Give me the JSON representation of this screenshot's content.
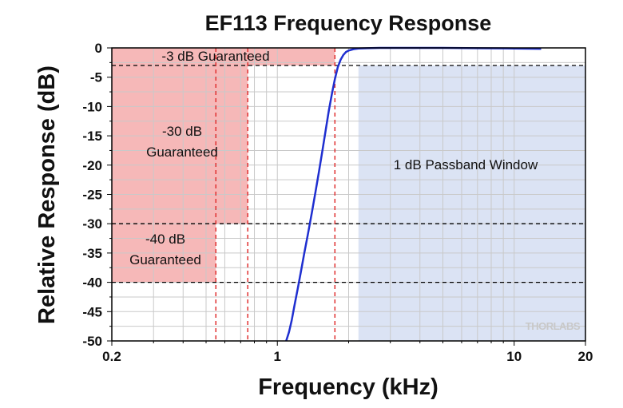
{
  "chart_data": {
    "type": "line",
    "title": "EF113 Frequency Response",
    "xlabel": "Frequency (kHz)",
    "ylabel": "Relative Response (dB)",
    "x_scale": "log",
    "xlim": [
      0.2,
      20
    ],
    "ylim": [
      -50,
      0
    ],
    "x_ticks": [
      0.2,
      1,
      10,
      20
    ],
    "x_tick_labels": [
      "0.2",
      "1",
      "10",
      "20"
    ],
    "y_ticks": [
      0,
      -5,
      -10,
      -15,
      -20,
      -25,
      -30,
      -35,
      -40,
      -45,
      -50
    ],
    "y_tick_labels": [
      "0",
      "-5",
      "-10",
      "-15",
      "-20",
      "-25",
      "-30",
      "-35",
      "-40",
      "-45",
      "-50"
    ],
    "grid": true,
    "series": [
      {
        "color": "#1f2fd0",
        "x": [
          1.09,
          1.12,
          1.15,
          1.18,
          1.22,
          1.26,
          1.3,
          1.35,
          1.4,
          1.45,
          1.5,
          1.55,
          1.6,
          1.65,
          1.7,
          1.75,
          1.8,
          1.85,
          1.9,
          1.95,
          2.0,
          2.1,
          2.2,
          2.4,
          2.7,
          3.0,
          4.0,
          5.0,
          7.0,
          10.0,
          13.0
        ],
        "values": [
          -50,
          -48.5,
          -46.5,
          -44,
          -41,
          -38,
          -35,
          -31.5,
          -28,
          -24.5,
          -21,
          -17.5,
          -14,
          -10.7,
          -7.8,
          -5.3,
          -3.3,
          -2.0,
          -1.2,
          -0.7,
          -0.45,
          -0.2,
          -0.1,
          -0.05,
          0,
          0,
          0,
          0,
          -0.05,
          -0.1,
          -0.15
        ]
      }
    ],
    "horizontal_reference_lines": [
      -3,
      -30,
      -40
    ],
    "vertical_reference_lines": [
      0.55,
      0.75,
      1.75
    ],
    "regions": [
      {
        "label": "-3 dB Guaranteed",
        "x": [
          0.2,
          1.75
        ],
        "y": [
          -3,
          0
        ],
        "color": "#f6b8b8"
      },
      {
        "label": "-30 dB Guaranteed",
        "x": [
          0.2,
          0.75
        ],
        "y": [
          -30,
          -3
        ],
        "color": "#f6b8b8"
      },
      {
        "label": "-40 dB Guaranteed",
        "x": [
          0.2,
          0.55
        ],
        "y": [
          -40,
          -30
        ],
        "color": "#f6b8b8"
      },
      {
        "label": "1 dB Passband Window",
        "x": [
          2.2,
          20
        ],
        "y": [
          -50,
          -3
        ],
        "color": "#dbe3f4"
      }
    ],
    "watermark": "THORLABS"
  }
}
